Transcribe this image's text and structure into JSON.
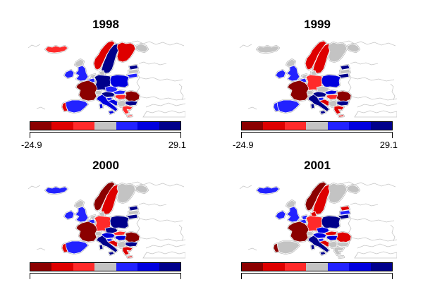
{
  "figure": {
    "background": "#ffffff",
    "border_color": "#000000",
    "map_border_color": "#ffffff",
    "coast_color": "#bdbdbd",
    "outline_color": "#c6c6c6"
  },
  "legend": {
    "min_label": "-24.9",
    "max_label": "29.1"
  },
  "chart_data": {
    "type": "heatmap",
    "subtype": "choropleth-small-multiples-europe",
    "title": "",
    "panels": [
      {
        "title": "1998",
        "country_classes": {
          "iceland": "c3",
          "norway": "c2",
          "sweden": "c7",
          "finland": "c2",
          "kola": "c4",
          "estonia": "c7",
          "latvia": "c4",
          "lithuania": "c5",
          "denmark": "c4",
          "scotland": "c4",
          "uk": "c5",
          "ireland": "c5",
          "netherlands": "c4",
          "belgium": "c5",
          "germany": "c7",
          "poland": "c6",
          "czech": "c5",
          "slovakia": "c5",
          "austria": "c7",
          "switzerland": "c4",
          "hungary": "c3",
          "slovenia": "c5",
          "croatia": "c6",
          "serbia": "c4",
          "france": "c1",
          "spain": "c5",
          "portugal": "c2",
          "italy": "c6",
          "romania": "c1",
          "bulgaria": "c7",
          "greece": "c3"
        }
      },
      {
        "title": "1999",
        "country_classes": {
          "iceland": "c4",
          "norway": "c2",
          "sweden": "c2",
          "finland": "c4",
          "kola": "c4",
          "estonia": "c7",
          "latvia": "c4",
          "lithuania": "c7",
          "denmark": "c4",
          "scotland": "c4",
          "uk": "c5",
          "ireland": "c5",
          "netherlands": "c4",
          "belgium": "c5",
          "germany": "c3",
          "poland": "c6",
          "czech": "c4",
          "slovakia": "c6",
          "austria": "c7",
          "switzerland": "c4",
          "hungary": "c3",
          "slovenia": "c5",
          "croatia": "c2",
          "serbia": "c4",
          "france": "c1",
          "spain": "c5",
          "portugal": "c5",
          "italy": "c7",
          "romania": "c1",
          "bulgaria": "c7",
          "greece": "c2"
        }
      },
      {
        "title": "2000",
        "country_classes": {
          "iceland": "c5",
          "norway": "c1",
          "sweden": "c2",
          "finland": "c4",
          "kola": "c4",
          "estonia": "c7",
          "latvia": "c4",
          "lithuania": "c7",
          "denmark": "c4",
          "scotland": "c4",
          "uk": "c5",
          "ireland": "c5",
          "netherlands": "c4",
          "belgium": "c5",
          "germany": "c3",
          "poland": "c7",
          "czech": "c7",
          "slovakia": "c3",
          "austria": "c6",
          "switzerland": "c4",
          "hungary": "c6",
          "slovenia": "c5",
          "croatia": "c2",
          "serbia": "c4",
          "france": "c1",
          "spain": "c5",
          "portugal": "c2",
          "italy": "c7",
          "romania": "c1",
          "bulgaria": "c7",
          "greece": "c2"
        }
      },
      {
        "title": "2001",
        "country_classes": {
          "iceland": "c5",
          "norway": "c1",
          "sweden": "c2",
          "finland": "c4",
          "kola": "c4",
          "estonia": "c2",
          "latvia": "c5",
          "lithuania": "c7",
          "denmark": "c2",
          "scotland": "c4",
          "uk": "c5",
          "ireland": "c5",
          "netherlands": "c5",
          "belgium": "c5",
          "germany": "c3",
          "poland": "c7",
          "czech": "c6",
          "slovakia": "c2",
          "austria": "c6",
          "switzerland": "c4",
          "hungary": "c6",
          "slovenia": "c5",
          "croatia": "c2",
          "serbia": "c4",
          "france": "c1",
          "spain": "c4",
          "portugal": "c1",
          "italy": "c7",
          "romania": "c2",
          "bulgaria": "c4",
          "greece": "c4"
        }
      }
    ],
    "scale": {
      "min": -24.9,
      "max": 29.1,
      "classes": 7,
      "class_order": [
        "c1",
        "c2",
        "c3",
        "c4",
        "c5",
        "c6",
        "c7"
      ],
      "colors": {
        "c1": "#8B0000",
        "c2": "#DE0000",
        "c3": "#FF2A2A",
        "c4": "#C3C3C3",
        "c5": "#2222FF",
        "c6": "#0000DE",
        "c7": "#00008B"
      },
      "non_data_class": "c4",
      "legend_position": "bottom"
    }
  }
}
